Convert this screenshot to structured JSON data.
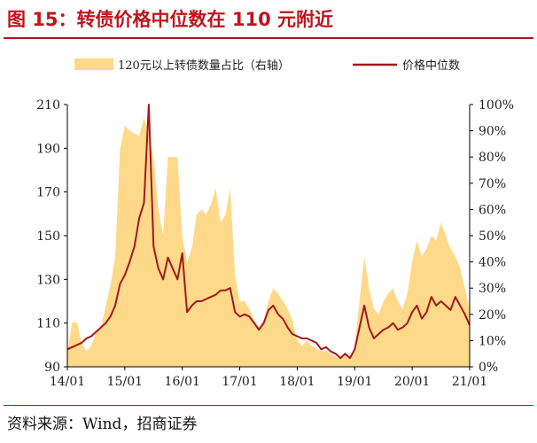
{
  "title": "图 15：转债价格中位数在 110 元附近",
  "source": "资料来源：Wind，招商证券",
  "colors": {
    "accent": "#c0141c",
    "area": "#ffd98a",
    "line": "#a3171c",
    "axis": "#000000"
  },
  "chart_data": {
    "type": "line",
    "title": "",
    "legend_position": "top",
    "grid": false,
    "x_ticks": [
      "14/01",
      "15/01",
      "16/01",
      "17/01",
      "18/01",
      "19/01",
      "20/01",
      "21/01"
    ],
    "y_left": {
      "min": 90,
      "max": 210,
      "ticks": [
        90,
        110,
        130,
        150,
        170,
        190,
        210
      ]
    },
    "y_right": {
      "min": 0,
      "max": 100,
      "ticks": [
        "0%",
        "10%",
        "20%",
        "30%",
        "40%",
        "50%",
        "60%",
        "70%",
        "80%",
        "90%",
        "100%"
      ]
    },
    "series": [
      {
        "name": "120元以上转债数量占比（右轴）",
        "axis": "right",
        "kind": "area",
        "points": [
          [
            "2014-01",
            5
          ],
          [
            "2014-02",
            17
          ],
          [
            "2014-03",
            17
          ],
          [
            "2014-04",
            9
          ],
          [
            "2014-05",
            6
          ],
          [
            "2014-06",
            8
          ],
          [
            "2014-07",
            13
          ],
          [
            "2014-08",
            15
          ],
          [
            "2014-09",
            23
          ],
          [
            "2014-10",
            31
          ],
          [
            "2014-11",
            42
          ],
          [
            "2014-12",
            83
          ],
          [
            "2015-01",
            92
          ],
          [
            "2015-02",
            90
          ],
          [
            "2015-03",
            89
          ],
          [
            "2015-04",
            88
          ],
          [
            "2015-05",
            95
          ],
          [
            "2015-06",
            89
          ],
          [
            "2015-07",
            80
          ],
          [
            "2015-08",
            60
          ],
          [
            "2015-09",
            50
          ],
          [
            "2015-10",
            80
          ],
          [
            "2015-11",
            80
          ],
          [
            "2015-12",
            80
          ],
          [
            "2016-01",
            50
          ],
          [
            "2016-02",
            40
          ],
          [
            "2016-03",
            45
          ],
          [
            "2016-04",
            58
          ],
          [
            "2016-05",
            60
          ],
          [
            "2016-06",
            58
          ],
          [
            "2016-07",
            62
          ],
          [
            "2016-08",
            68
          ],
          [
            "2016-09",
            55
          ],
          [
            "2016-10",
            58
          ],
          [
            "2016-11",
            68
          ],
          [
            "2016-12",
            35
          ],
          [
            "2017-01",
            25
          ],
          [
            "2017-02",
            25
          ],
          [
            "2017-03",
            22
          ],
          [
            "2017-04",
            18
          ],
          [
            "2017-05",
            15
          ],
          [
            "2017-06",
            18
          ],
          [
            "2017-07",
            25
          ],
          [
            "2017-08",
            30
          ],
          [
            "2017-09",
            28
          ],
          [
            "2017-10",
            25
          ],
          [
            "2017-11",
            22
          ],
          [
            "2017-12",
            18
          ],
          [
            "2018-01",
            10
          ],
          [
            "2018-02",
            8
          ],
          [
            "2018-03",
            10
          ],
          [
            "2018-04",
            8
          ],
          [
            "2018-05",
            7
          ],
          [
            "2018-06",
            6
          ],
          [
            "2018-07",
            6
          ],
          [
            "2018-08",
            5
          ],
          [
            "2018-09",
            4
          ],
          [
            "2018-10",
            3
          ],
          [
            "2018-11",
            5
          ],
          [
            "2018-12",
            3
          ],
          [
            "2019-01",
            8
          ],
          [
            "2019-02",
            25
          ],
          [
            "2019-03",
            42
          ],
          [
            "2019-04",
            30
          ],
          [
            "2019-05",
            22
          ],
          [
            "2019-06",
            20
          ],
          [
            "2019-07",
            25
          ],
          [
            "2019-08",
            28
          ],
          [
            "2019-09",
            30
          ],
          [
            "2019-10",
            25
          ],
          [
            "2019-11",
            22
          ],
          [
            "2019-12",
            28
          ],
          [
            "2020-01",
            40
          ],
          [
            "2020-02",
            48
          ],
          [
            "2020-03",
            42
          ],
          [
            "2020-04",
            45
          ],
          [
            "2020-05",
            50
          ],
          [
            "2020-06",
            48
          ],
          [
            "2020-07",
            55
          ],
          [
            "2020-08",
            50
          ],
          [
            "2020-09",
            45
          ],
          [
            "2020-10",
            42
          ],
          [
            "2020-11",
            38
          ],
          [
            "2020-12",
            30
          ],
          [
            "2021-01",
            22
          ]
        ]
      },
      {
        "name": "价格中位数",
        "axis": "left",
        "kind": "line",
        "points": [
          [
            "2014-01",
            98
          ],
          [
            "2014-02",
            99
          ],
          [
            "2014-03",
            100
          ],
          [
            "2014-04",
            101
          ],
          [
            "2014-05",
            103
          ],
          [
            "2014-06",
            104
          ],
          [
            "2014-07",
            106
          ],
          [
            "2014-08",
            108
          ],
          [
            "2014-09",
            110
          ],
          [
            "2014-10",
            113
          ],
          [
            "2014-11",
            118
          ],
          [
            "2014-12",
            128
          ],
          [
            "2015-01",
            132
          ],
          [
            "2015-02",
            138
          ],
          [
            "2015-03",
            145
          ],
          [
            "2015-04",
            158
          ],
          [
            "2015-05",
            165
          ],
          [
            "2015-06",
            210
          ],
          [
            "2015-07",
            145
          ],
          [
            "2015-08",
            135
          ],
          [
            "2015-09",
            130
          ],
          [
            "2015-10",
            140
          ],
          [
            "2015-11",
            135
          ],
          [
            "2015-12",
            130
          ],
          [
            "2016-01",
            142
          ],
          [
            "2016-02",
            115
          ],
          [
            "2016-03",
            118
          ],
          [
            "2016-04",
            120
          ],
          [
            "2016-05",
            120
          ],
          [
            "2016-06",
            121
          ],
          [
            "2016-07",
            122
          ],
          [
            "2016-08",
            123
          ],
          [
            "2016-09",
            125
          ],
          [
            "2016-10",
            125
          ],
          [
            "2016-11",
            126
          ],
          [
            "2016-12",
            115
          ],
          [
            "2017-01",
            113
          ],
          [
            "2017-02",
            114
          ],
          [
            "2017-03",
            113
          ],
          [
            "2017-04",
            110
          ],
          [
            "2017-05",
            107
          ],
          [
            "2017-06",
            110
          ],
          [
            "2017-07",
            116
          ],
          [
            "2017-08",
            118
          ],
          [
            "2017-09",
            114
          ],
          [
            "2017-10",
            112
          ],
          [
            "2017-11",
            108
          ],
          [
            "2017-12",
            105
          ],
          [
            "2018-01",
            104
          ],
          [
            "2018-02",
            103
          ],
          [
            "2018-03",
            103
          ],
          [
            "2018-04",
            102
          ],
          [
            "2018-05",
            101
          ],
          [
            "2018-06",
            98
          ],
          [
            "2018-07",
            99
          ],
          [
            "2018-08",
            97
          ],
          [
            "2018-09",
            96
          ],
          [
            "2018-10",
            94
          ],
          [
            "2018-11",
            96
          ],
          [
            "2018-12",
            94
          ],
          [
            "2019-01",
            98
          ],
          [
            "2019-02",
            108
          ],
          [
            "2019-03",
            118
          ],
          [
            "2019-04",
            108
          ],
          [
            "2019-05",
            103
          ],
          [
            "2019-06",
            105
          ],
          [
            "2019-07",
            107
          ],
          [
            "2019-08",
            108
          ],
          [
            "2019-09",
            110
          ],
          [
            "2019-10",
            107
          ],
          [
            "2019-11",
            108
          ],
          [
            "2019-12",
            110
          ],
          [
            "2020-01",
            115
          ],
          [
            "2020-02",
            118
          ],
          [
            "2020-03",
            112
          ],
          [
            "2020-04",
            115
          ],
          [
            "2020-05",
            122
          ],
          [
            "2020-06",
            118
          ],
          [
            "2020-07",
            120
          ],
          [
            "2020-08",
            118
          ],
          [
            "2020-09",
            116
          ],
          [
            "2020-10",
            122
          ],
          [
            "2020-11",
            118
          ],
          [
            "2020-12",
            114
          ],
          [
            "2021-01",
            109
          ]
        ]
      }
    ]
  }
}
